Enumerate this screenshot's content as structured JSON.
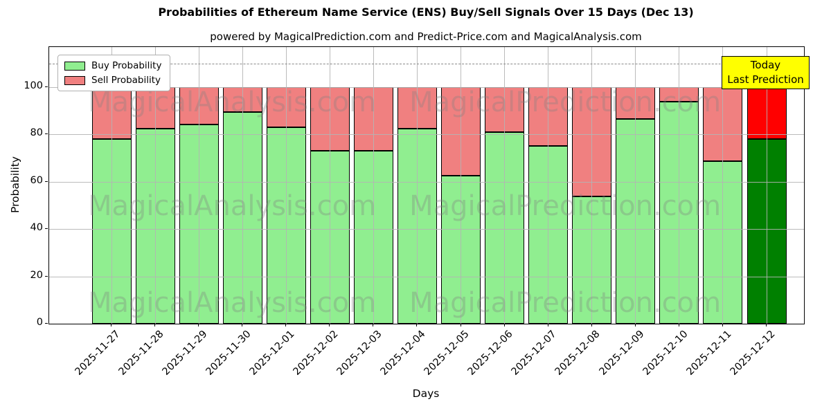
{
  "title": "Probabilities of Ethereum Name Service (ENS) Buy/Sell Signals Over 15 Days (Dec 13)",
  "subtitle": "powered by MagicalPrediction.com and Predict-Price.com and MagicalAnalysis.com",
  "annotation": {
    "line1": "Today",
    "line2": "Last Prediction",
    "bg_color": "#ffff00"
  },
  "watermark": {
    "left_text": "MagicalAnalysis.com",
    "right_text": "MagicalPrediction.com"
  },
  "chart_data": {
    "type": "bar",
    "stacked": true,
    "title": "Probabilities of Ethereum Name Service (ENS) Buy/Sell Signals Over 15 Days (Dec 13)",
    "xlabel": "Days",
    "ylabel": "Probability",
    "ylim": [
      0,
      117
    ],
    "yticks": [
      0,
      20,
      40,
      60,
      80,
      100
    ],
    "grid": true,
    "legend_position": "upper left",
    "dashed_line_y": 110,
    "categories": [
      "2025-11-27",
      "2025-11-28",
      "2025-11-29",
      "2025-11-30",
      "2025-12-01",
      "2025-12-02",
      "2025-12-03",
      "2025-12-04",
      "2025-12-05",
      "2025-12-06",
      "2025-12-07",
      "2025-12-08",
      "2025-12-09",
      "2025-12-10",
      "2025-12-11",
      "2025-12-12"
    ],
    "series": [
      {
        "name": "Buy Probability",
        "color": "#90ee90",
        "values": [
          78,
          82.5,
          84,
          89.5,
          83,
          73,
          73,
          82.5,
          62.5,
          81,
          75,
          53.5,
          86.5,
          94,
          68.5,
          78
        ]
      },
      {
        "name": "Sell Probability",
        "color": "#f08080",
        "values": [
          22,
          17.5,
          16,
          10.5,
          17,
          27,
          27,
          17.5,
          37.5,
          19,
          25,
          46.5,
          13.5,
          6,
          31.5,
          22
        ]
      }
    ],
    "today_bar": {
      "index": 15,
      "buy_color": "#008000",
      "sell_color": "#ff0000"
    },
    "colors": {
      "bar_edge": "#000000",
      "grid": "#b4b4b4",
      "dashed_line": "#888888"
    }
  }
}
